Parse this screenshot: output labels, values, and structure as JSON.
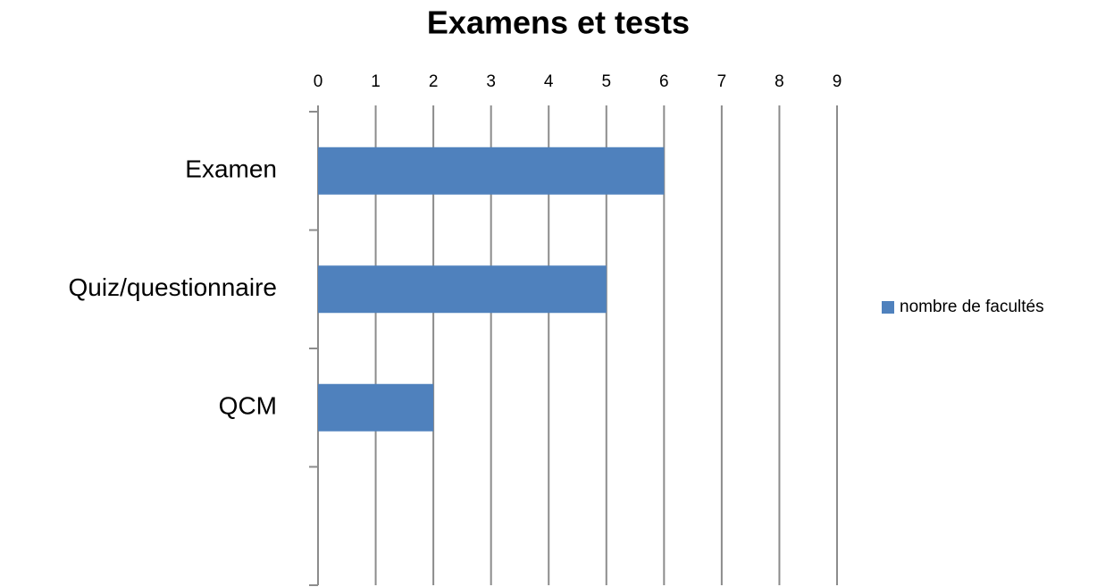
{
  "chart_data": {
    "type": "bar",
    "orientation": "horizontal",
    "title": "Examens et tests",
    "categories": [
      "Examen",
      "Quiz/questionnaire",
      "QCM",
      null
    ],
    "series": [
      {
        "name": "nombre de facultés",
        "color": "#4f81bd",
        "values": [
          6,
          5,
          2,
          null
        ]
      }
    ],
    "xlim": [
      0,
      9
    ],
    "xticks": [
      0,
      1,
      2,
      3,
      4,
      5,
      6,
      7,
      8,
      9
    ],
    "grid": true,
    "legend": "right"
  }
}
